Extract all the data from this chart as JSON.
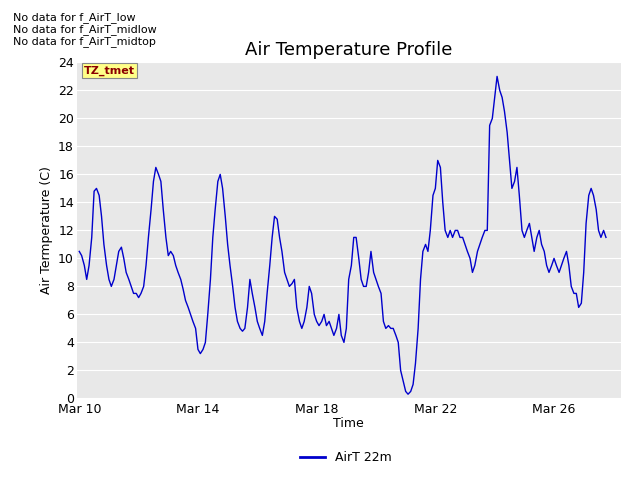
{
  "title": "Air Temperature Profile",
  "xlabel": "Time",
  "ylabel": "Air Termperature (C)",
  "legend_label": "AirT 22m",
  "no_data_texts": [
    "No data for f_AirT_low",
    "No data for f_AirT_midlow",
    "No data for f_AirT_midtop"
  ],
  "tz_label": "TZ_tmet",
  "ylim": [
    0,
    24
  ],
  "yticks": [
    0,
    2,
    4,
    6,
    8,
    10,
    12,
    14,
    16,
    18,
    20,
    22,
    24
  ],
  "line_color": "#0000cc",
  "fig_bg_color": "#ffffff",
  "plot_bg_color": "#e8e8e8",
  "grid_color": "#ffffff",
  "title_fontsize": 13,
  "axis_fontsize": 9,
  "tick_fontsize": 9,
  "time_points": [
    0.0,
    0.08,
    0.17,
    0.25,
    0.33,
    0.42,
    0.5,
    0.58,
    0.67,
    0.75,
    0.83,
    0.92,
    1.0,
    1.08,
    1.17,
    1.25,
    1.33,
    1.42,
    1.5,
    1.58,
    1.67,
    1.75,
    1.83,
    1.92,
    2.0,
    2.08,
    2.17,
    2.25,
    2.33,
    2.42,
    2.5,
    2.58,
    2.67,
    2.75,
    2.83,
    2.92,
    3.0,
    3.08,
    3.17,
    3.25,
    3.33,
    3.42,
    3.5,
    3.58,
    3.67,
    3.75,
    3.83,
    3.92,
    4.0,
    4.08,
    4.17,
    4.25,
    4.33,
    4.42,
    4.5,
    4.58,
    4.67,
    4.75,
    4.83,
    4.92,
    5.0,
    5.08,
    5.17,
    5.25,
    5.33,
    5.42,
    5.5,
    5.58,
    5.67,
    5.75,
    5.83,
    5.92,
    6.0,
    6.08,
    6.17,
    6.25,
    6.33,
    6.42,
    6.5,
    6.58,
    6.67,
    6.75,
    6.83,
    6.92,
    7.0,
    7.08,
    7.17,
    7.25,
    7.33,
    7.42,
    7.5,
    7.58,
    7.67,
    7.75,
    7.83,
    7.92,
    8.0,
    8.08,
    8.17,
    8.25,
    8.33,
    8.42,
    8.5,
    8.58,
    8.67,
    8.75,
    8.83,
    8.92,
    9.0,
    9.08,
    9.17,
    9.25,
    9.33,
    9.42,
    9.5,
    9.58,
    9.67,
    9.75,
    9.83,
    9.92,
    10.0,
    10.08,
    10.17,
    10.25,
    10.33,
    10.42,
    10.5,
    10.58,
    10.67,
    10.75,
    10.83,
    10.92,
    11.0,
    11.08,
    11.17,
    11.25,
    11.33,
    11.42,
    11.5,
    11.58,
    11.67,
    11.75,
    11.83,
    11.92,
    12.0,
    12.08,
    12.17,
    12.25,
    12.33,
    12.42,
    12.5,
    12.58,
    12.67,
    12.75,
    12.83,
    12.92,
    13.0,
    13.08,
    13.17,
    13.25,
    13.33,
    13.42,
    13.5,
    13.58,
    13.67,
    13.75,
    13.83,
    13.92,
    14.0,
    14.08,
    14.17,
    14.25,
    14.33,
    14.42,
    14.5,
    14.58,
    14.67,
    14.75,
    14.83,
    14.92,
    15.0,
    15.08,
    15.17,
    15.25,
    15.33,
    15.42,
    15.5,
    15.58,
    15.67,
    15.75,
    15.83,
    15.92,
    16.0,
    16.08,
    16.17,
    16.25,
    16.33,
    16.42,
    16.5,
    16.58,
    16.67,
    16.75,
    16.83,
    16.92,
    17.0,
    17.08,
    17.17,
    17.25,
    17.33,
    17.42,
    17.5,
    17.58,
    17.67,
    17.75
  ],
  "temp_values": [
    10.5,
    10.2,
    9.5,
    8.5,
    9.5,
    11.5,
    14.8,
    15.0,
    14.5,
    13.0,
    11.0,
    9.5,
    8.5,
    8.0,
    8.5,
    9.5,
    10.5,
    10.8,
    10.0,
    9.0,
    8.5,
    8.0,
    7.5,
    7.5,
    7.2,
    7.5,
    8.0,
    9.5,
    11.5,
    13.5,
    15.5,
    16.5,
    16.0,
    15.5,
    13.5,
    11.5,
    10.2,
    10.5,
    10.2,
    9.5,
    9.0,
    8.5,
    7.8,
    7.0,
    6.5,
    6.0,
    5.5,
    5.0,
    3.5,
    3.2,
    3.5,
    4.0,
    6.0,
    8.5,
    11.5,
    13.5,
    15.5,
    16.0,
    15.0,
    13.0,
    11.0,
    9.5,
    8.0,
    6.5,
    5.5,
    5.0,
    4.8,
    5.0,
    6.5,
    8.5,
    7.5,
    6.5,
    5.5,
    5.0,
    4.5,
    5.5,
    7.5,
    9.5,
    11.5,
    13.0,
    12.8,
    11.5,
    10.5,
    9.0,
    8.5,
    8.0,
    8.2,
    8.5,
    6.5,
    5.5,
    5.0,
    5.5,
    6.5,
    8.0,
    7.5,
    6.0,
    5.5,
    5.2,
    5.5,
    6.0,
    5.2,
    5.5,
    5.0,
    4.5,
    5.0,
    6.0,
    4.5,
    4.0,
    5.0,
    8.5,
    9.5,
    11.5,
    11.5,
    10.0,
    8.5,
    8.0,
    8.0,
    9.0,
    10.5,
    9.0,
    8.5,
    8.0,
    7.5,
    5.5,
    5.0,
    5.2,
    5.0,
    5.0,
    4.5,
    4.0,
    2.0,
    1.2,
    0.5,
    0.3,
    0.5,
    1.0,
    2.5,
    5.0,
    8.5,
    10.5,
    11.0,
    10.5,
    12.0,
    14.5,
    15.0,
    17.0,
    16.5,
    14.0,
    12.0,
    11.5,
    12.0,
    11.5,
    12.0,
    12.0,
    11.5,
    11.5,
    11.0,
    10.5,
    10.0,
    9.0,
    9.5,
    10.5,
    11.0,
    11.5,
    12.0,
    12.0,
    19.5,
    20.0,
    21.5,
    23.0,
    22.0,
    21.5,
    20.5,
    19.0,
    17.0,
    15.0,
    15.5,
    16.5,
    14.5,
    12.0,
    11.5,
    12.0,
    12.5,
    11.5,
    10.5,
    11.5,
    12.0,
    11.0,
    10.5,
    9.5,
    9.0,
    9.5,
    10.0,
    9.5,
    9.0,
    9.5,
    10.0,
    10.5,
    9.5,
    8.0,
    7.5,
    7.5,
    6.5,
    6.8,
    9.0,
    12.5,
    14.5,
    15.0,
    14.5,
    13.5,
    12.0,
    11.5,
    12.0,
    11.5
  ]
}
